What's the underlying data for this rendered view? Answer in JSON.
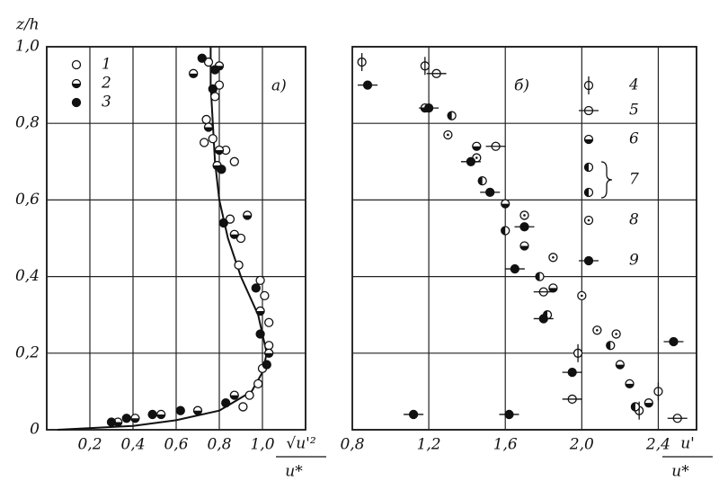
{
  "chart_data": [
    {
      "type": "scatter",
      "y_label": "z/h",
      "panel_label": "a)",
      "x_label_numerator": "√u'²",
      "x_label_denominator": "u*",
      "xlim": [
        0,
        1.2
      ],
      "ylim": [
        0,
        1
      ],
      "xticks": [
        {
          "value": 0.2,
          "label": "0,2"
        },
        {
          "value": 0.4,
          "label": "0,4"
        },
        {
          "value": 0.6,
          "label": "0,6"
        },
        {
          "value": 0.8,
          "label": "0,8"
        },
        {
          "value": 1,
          "label": "1,0"
        }
      ],
      "yticks": [
        0,
        {
          "value": 0.2,
          "label": "0,2"
        },
        {
          "value": 0.4,
          "label": "0,4"
        },
        {
          "value": 0.6,
          "label": "0,6"
        },
        {
          "value": 0.8,
          "label": "0,8"
        },
        {
          "value": 1,
          "label": "1,0"
        }
      ],
      "grid": true,
      "series": [
        {
          "name": "1",
          "marker": "open",
          "color": "#111",
          "x": [
            0.75,
            0.8,
            0.78,
            0.74,
            0.77,
            0.73,
            0.83,
            0.87,
            0.85,
            0.9,
            0.89,
            0.99,
            1.01,
            1.03,
            1.03,
            1.0,
            0.98,
            0.94,
            0.91
          ],
          "y": [
            0.96,
            0.9,
            0.87,
            0.81,
            0.76,
            0.75,
            0.73,
            0.7,
            0.55,
            0.5,
            0.43,
            0.39,
            0.35,
            0.28,
            0.22,
            0.16,
            0.12,
            0.09,
            0.06
          ]
        },
        {
          "name": "2",
          "marker": "half",
          "color": "#111",
          "x": [
            0.68,
            0.8,
            0.75,
            0.8,
            0.79,
            0.93,
            0.87,
            0.99,
            1.03,
            0.87,
            0.7,
            0.53,
            0.41,
            0.33
          ],
          "y": [
            0.93,
            0.95,
            0.79,
            0.73,
            0.69,
            0.56,
            0.51,
            0.31,
            0.2,
            0.09,
            0.05,
            0.04,
            0.03,
            0.02
          ]
        },
        {
          "name": "3",
          "marker": "filled",
          "color": "#111",
          "x": [
            0.72,
            0.78,
            0.77,
            0.81,
            0.82,
            0.97,
            0.99,
            1.02,
            0.83,
            0.62,
            0.49,
            0.37,
            0.3
          ],
          "y": [
            0.97,
            0.94,
            0.89,
            0.68,
            0.54,
            0.37,
            0.25,
            0.17,
            0.07,
            0.05,
            0.04,
            0.03,
            0.02
          ]
        }
      ],
      "curve": {
        "x": [
          0.05,
          0.4,
          0.6,
          0.8,
          0.95,
          1.0,
          1.02,
          0.98,
          0.9,
          0.84,
          0.8,
          0.78,
          0.77,
          0.76,
          0.76
        ],
        "y": [
          0.0,
          0.01,
          0.025,
          0.05,
          0.1,
          0.15,
          0.2,
          0.3,
          0.4,
          0.5,
          0.6,
          0.7,
          0.8,
          0.9,
          1.0
        ]
      }
    },
    {
      "type": "scatter",
      "panel_label": "б)",
      "x_label_numerator": "u'",
      "x_label_denominator": "u*",
      "xlim": [
        0.8,
        2.6
      ],
      "ylim": [
        0,
        1
      ],
      "xticks": [
        {
          "value": 0.8,
          "label": "0,8"
        },
        {
          "value": 1.2,
          "label": "1,2"
        },
        {
          "value": 1.6,
          "label": "1,6"
        },
        {
          "value": 2,
          "label": "2,0"
        },
        {
          "value": 2.4,
          "label": "2,4"
        }
      ],
      "yticks": [
        0.2,
        0.4,
        0.6,
        0.8
      ],
      "grid": true,
      "series": [
        {
          "name": "4",
          "marker": "open-vbar",
          "color": "#111",
          "x": [
            0.85,
            1.18,
            1.98,
            2.4,
            2.3
          ],
          "y": [
            0.96,
            0.95,
            0.2,
            0.1,
            0.05
          ]
        },
        {
          "name": "5",
          "marker": "open-hbar",
          "color": "#111",
          "x": [
            1.24,
            1.95,
            2.5,
            1.55,
            1.8
          ],
          "y": [
            0.93,
            0.08,
            0.03,
            0.74,
            0.36
          ]
        },
        {
          "name": "6",
          "marker": "half",
          "color": "#111",
          "x": [
            1.18,
            1.45,
            1.6,
            1.7,
            1.85,
            2.2,
            2.25,
            2.35
          ],
          "y": [
            0.84,
            0.74,
            0.59,
            0.48,
            0.37,
            0.17,
            0.12,
            0.07
          ]
        },
        {
          "name": "7",
          "marker": "half-v",
          "color": "#111",
          "x": [
            1.32,
            1.48,
            1.6,
            1.78,
            1.82,
            2.15,
            2.28
          ],
          "y": [
            0.82,
            0.65,
            0.52,
            0.4,
            0.3,
            0.22,
            0.06
          ]
        },
        {
          "name": "8",
          "marker": "dotted",
          "color": "#111",
          "x": [
            1.3,
            1.45,
            1.7,
            1.85,
            2.0,
            2.08,
            2.18
          ],
          "y": [
            0.77,
            0.71,
            0.56,
            0.45,
            0.35,
            0.26,
            0.25
          ]
        },
        {
          "name": "9",
          "marker": "filled-hbar",
          "color": "#111",
          "x": [
            0.88,
            1.2,
            1.42,
            1.52,
            1.7,
            1.65,
            1.8,
            1.95,
            2.48,
            1.12,
            1.62
          ],
          "y": [
            0.9,
            0.84,
            0.7,
            0.62,
            0.53,
            0.42,
            0.29,
            0.15,
            0.23,
            0.04,
            0.04
          ]
        }
      ]
    }
  ]
}
